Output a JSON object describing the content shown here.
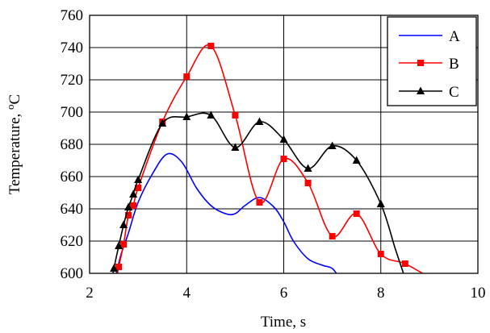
{
  "chart_data": {
    "type": "line",
    "xlabel": "Time, s",
    "ylabel": "Temperature, ",
    "ylabel_unit_sup": "o",
    "ylabel_unit": "C",
    "xlim": [
      2,
      10
    ],
    "ylim": [
      600,
      760
    ],
    "xticks": [
      2,
      4,
      6,
      8,
      10
    ],
    "yticks": [
      600,
      620,
      640,
      660,
      680,
      700,
      720,
      740,
      760
    ],
    "grid": true,
    "legend_position": "top-right",
    "series": [
      {
        "name": "A",
        "color": "#0000ff",
        "marker": "none",
        "x": [
          2.55,
          2.65,
          2.8,
          3.0,
          3.3,
          3.6,
          3.9,
          4.2,
          4.5,
          4.8,
          5.0,
          5.2,
          5.5,
          5.8,
          6.0,
          6.2,
          6.5,
          6.8,
          7.0,
          7.15
        ],
        "y": [
          600,
          612,
          625,
          644,
          662,
          674,
          669,
          653,
          642,
          637,
          637,
          642,
          647,
          641,
          632,
          620,
          609,
          605,
          603,
          597
        ]
      },
      {
        "name": "B",
        "color": "#ff0000",
        "marker": "square",
        "marker_x": [
          2.6,
          2.7,
          2.8,
          2.9,
          3.0,
          3.5,
          4.0,
          4.5,
          5.0,
          5.5,
          6.0,
          6.5,
          7.0,
          7.5,
          8.0,
          8.5,
          10.0
        ],
        "marker_y": [
          604,
          618,
          636,
          642,
          653,
          694,
          722,
          741,
          698,
          644,
          671,
          656,
          623,
          637,
          612,
          606,
          597
        ],
        "x": [
          2.55,
          2.6,
          2.7,
          2.8,
          2.9,
          3.0,
          3.5,
          4.0,
          4.5,
          5.0,
          5.5,
          6.0,
          6.5,
          7.0,
          7.5,
          8.0,
          8.5,
          9.0,
          9.5,
          10.0
        ],
        "y": [
          596,
          604,
          618,
          636,
          642,
          653,
          694,
          722,
          741,
          698,
          644,
          671,
          656,
          623,
          637,
          612,
          606,
          598,
          594,
          597
        ]
      },
      {
        "name": "C",
        "color": "#000000",
        "marker": "triangle",
        "marker_x": [
          2.5,
          2.6,
          2.7,
          2.8,
          2.9,
          3.0,
          3.5,
          4.0,
          4.5,
          5.0,
          5.5,
          6.0,
          6.5,
          7.0,
          7.5,
          8.0
        ],
        "marker_y": [
          603,
          617,
          630,
          641,
          649,
          658,
          693,
          697,
          698,
          678,
          694,
          683,
          665,
          679,
          670,
          643
        ],
        "x": [
          2.45,
          2.5,
          2.6,
          2.7,
          2.8,
          2.9,
          3.0,
          3.5,
          4.0,
          4.5,
          5.0,
          5.5,
          6.0,
          6.5,
          7.0,
          7.5,
          8.0,
          8.3,
          8.5
        ],
        "y": [
          594,
          603,
          617,
          630,
          641,
          649,
          658,
          693,
          697,
          698,
          678,
          694,
          683,
          665,
          679,
          670,
          643,
          615,
          597
        ]
      }
    ]
  }
}
